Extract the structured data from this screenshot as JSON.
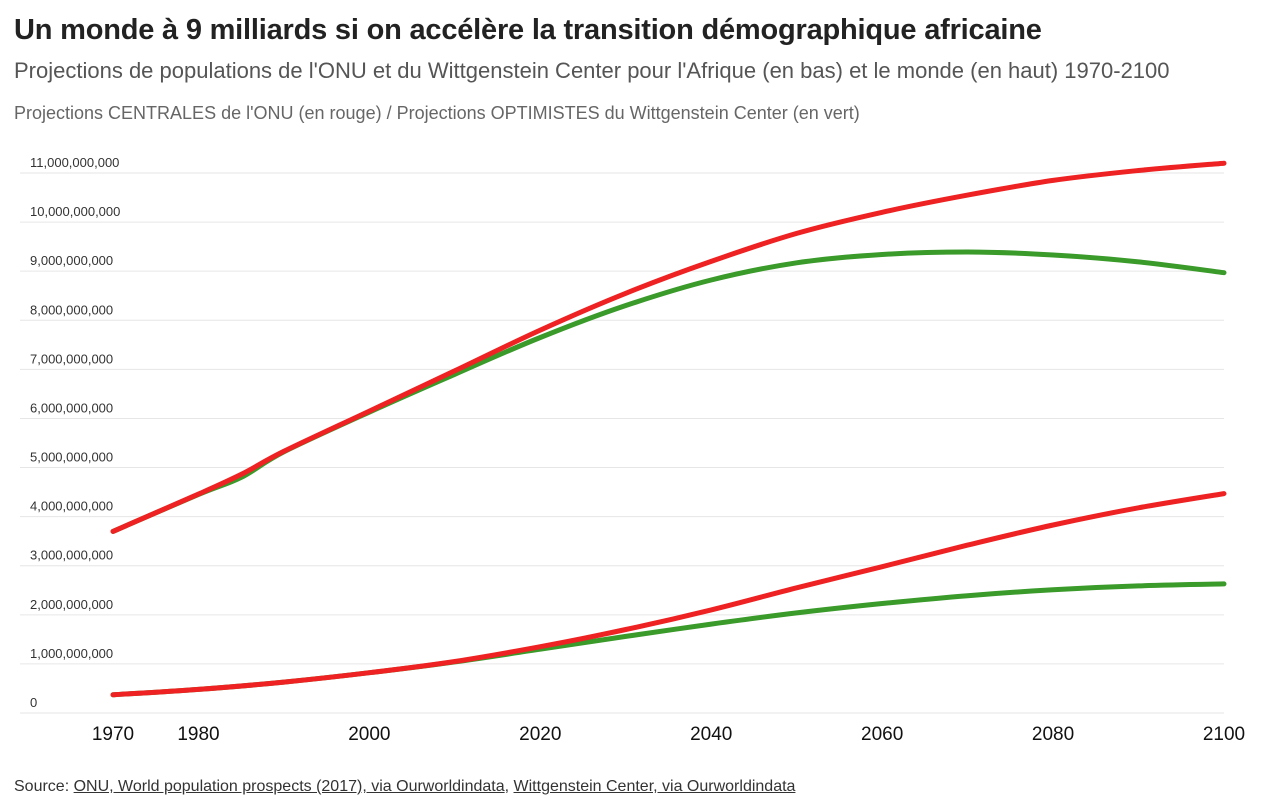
{
  "header": {
    "title": "Un monde à 9 milliards si on accélère la transition démographique africaine",
    "subtitle": "Projections de populations de l'ONU et du Wittgenstein Center pour l'Afrique (en bas) et le monde (en haut) 1970-2100",
    "note": "Projections CENTRALES de l'ONU (en rouge) / Projections OPTIMISTES du Wittgenstein Center (en vert)"
  },
  "source": {
    "prefix": "Source: ",
    "link1": "ONU, World population prospects (2017), via Ourworldindata",
    "separator": ", ",
    "link2": "Wittgenstein Center, via Ourworldindata"
  },
  "colors": {
    "un_central": "#ee2222",
    "wittgenstein_optimistic": "#3a9a2a",
    "grid": "#e6e6e6"
  },
  "chart_data": {
    "type": "line",
    "xlim": [
      1970,
      2100
    ],
    "ylim": [
      0,
      11000000000
    ],
    "x_ticks": [
      {
        "value": 1970,
        "label": "1970"
      },
      {
        "value": 1980,
        "label": "1980"
      },
      {
        "value": 2000,
        "label": "2000"
      },
      {
        "value": 2020,
        "label": "2020"
      },
      {
        "value": 2040,
        "label": "2040"
      },
      {
        "value": 2060,
        "label": "2060"
      },
      {
        "value": 2080,
        "label": "2080"
      },
      {
        "value": 2100,
        "label": "2100"
      }
    ],
    "y_ticks": [
      {
        "value": 0,
        "label": "0"
      },
      {
        "value": 1000000000,
        "label": "1,000,000,000"
      },
      {
        "value": 2000000000,
        "label": "2,000,000,000"
      },
      {
        "value": 3000000000,
        "label": "3,000,000,000"
      },
      {
        "value": 4000000000,
        "label": "4,000,000,000"
      },
      {
        "value": 5000000000,
        "label": "5,000,000,000"
      },
      {
        "value": 6000000000,
        "label": "6,000,000,000"
      },
      {
        "value": 7000000000,
        "label": "7,000,000,000"
      },
      {
        "value": 8000000000,
        "label": "8,000,000,000"
      },
      {
        "value": 9000000000,
        "label": "9,000,000,000"
      },
      {
        "value": 10000000000,
        "label": "10,000,000,000"
      },
      {
        "value": 11000000000,
        "label": "11,000,000,000"
      }
    ],
    "grid": true,
    "legend": "none",
    "series": [
      {
        "id": "world-wittgenstein",
        "color_key": "wittgenstein_optimistic",
        "points": [
          [
            1970,
            3700000000
          ],
          [
            1980,
            4450000000
          ],
          [
            1985,
            4800000000
          ],
          [
            1990,
            5320000000
          ],
          [
            2000,
            6130000000
          ],
          [
            2010,
            6900000000
          ],
          [
            2020,
            7650000000
          ],
          [
            2030,
            8300000000
          ],
          [
            2040,
            8820000000
          ],
          [
            2050,
            9170000000
          ],
          [
            2060,
            9340000000
          ],
          [
            2070,
            9390000000
          ],
          [
            2080,
            9330000000
          ],
          [
            2090,
            9190000000
          ],
          [
            2100,
            8970000000
          ]
        ]
      },
      {
        "id": "world-un",
        "color_key": "un_central",
        "points": [
          [
            1970,
            3700000000
          ],
          [
            1980,
            4460000000
          ],
          [
            1985,
            4860000000
          ],
          [
            1990,
            5330000000
          ],
          [
            2000,
            6150000000
          ],
          [
            2010,
            6970000000
          ],
          [
            2020,
            7800000000
          ],
          [
            2030,
            8550000000
          ],
          [
            2040,
            9200000000
          ],
          [
            2050,
            9770000000
          ],
          [
            2060,
            10200000000
          ],
          [
            2070,
            10550000000
          ],
          [
            2080,
            10850000000
          ],
          [
            2090,
            11050000000
          ],
          [
            2100,
            11200000000
          ]
        ]
      },
      {
        "id": "africa-wittgenstein",
        "color_key": "wittgenstein_optimistic",
        "points": [
          [
            1970,
            370000000
          ],
          [
            1980,
            480000000
          ],
          [
            1990,
            630000000
          ],
          [
            2000,
            820000000
          ],
          [
            2010,
            1040000000
          ],
          [
            2020,
            1300000000
          ],
          [
            2030,
            1560000000
          ],
          [
            2040,
            1810000000
          ],
          [
            2050,
            2040000000
          ],
          [
            2060,
            2230000000
          ],
          [
            2070,
            2390000000
          ],
          [
            2080,
            2510000000
          ],
          [
            2090,
            2590000000
          ],
          [
            2100,
            2630000000
          ]
        ]
      },
      {
        "id": "africa-un",
        "color_key": "un_central",
        "points": [
          [
            1970,
            370000000
          ],
          [
            1980,
            480000000
          ],
          [
            1990,
            630000000
          ],
          [
            2000,
            820000000
          ],
          [
            2010,
            1050000000
          ],
          [
            2020,
            1350000000
          ],
          [
            2030,
            1700000000
          ],
          [
            2040,
            2100000000
          ],
          [
            2050,
            2550000000
          ],
          [
            2060,
            2980000000
          ],
          [
            2070,
            3420000000
          ],
          [
            2080,
            3830000000
          ],
          [
            2090,
            4180000000
          ],
          [
            2100,
            4470000000
          ]
        ]
      }
    ]
  }
}
